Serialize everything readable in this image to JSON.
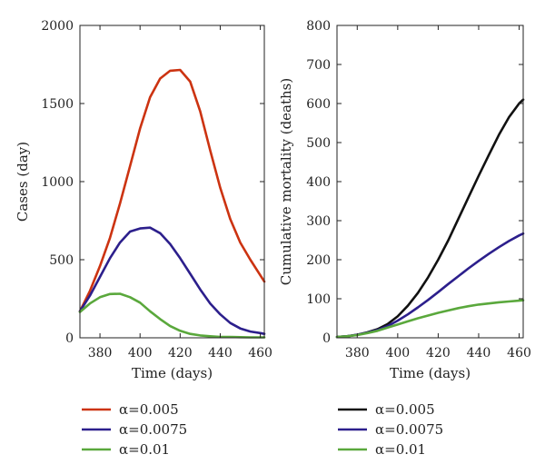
{
  "chart_data": [
    {
      "type": "line",
      "xlabel": "Time (days)",
      "ylabel": "Cases (day)",
      "xlim": [
        370,
        462
      ],
      "ylim": [
        0,
        2000
      ],
      "xticks": [
        380,
        400,
        420,
        440,
        460
      ],
      "yticks": [
        0,
        500,
        1000,
        1500,
        2000
      ],
      "x": [
        370,
        375,
        380,
        385,
        390,
        395,
        400,
        405,
        410,
        415,
        420,
        425,
        430,
        435,
        440,
        445,
        450,
        455,
        460,
        462
      ],
      "series": [
        {
          "name": "α=0.005",
          "color": "#cc3311",
          "values": [
            170,
            300,
            460,
            640,
            860,
            1100,
            1340,
            1540,
            1660,
            1710,
            1715,
            1640,
            1450,
            1200,
            960,
            760,
            610,
            500,
            400,
            360
          ]
        },
        {
          "name": "α=0.0075",
          "color": "#2c1f8c",
          "values": [
            170,
            270,
            390,
            510,
            610,
            680,
            700,
            705,
            670,
            600,
            510,
            410,
            310,
            220,
            150,
            95,
            60,
            40,
            30,
            25
          ]
        },
        {
          "name": "α=0.01",
          "color": "#5aa83c",
          "values": [
            165,
            220,
            260,
            280,
            282,
            260,
            225,
            170,
            120,
            75,
            45,
            25,
            15,
            10,
            6,
            5,
            4,
            3,
            3,
            3
          ]
        }
      ]
    },
    {
      "type": "line",
      "xlabel": "Time (days)",
      "ylabel": "Cumulative mortality (deaths)",
      "xlim": [
        370,
        462
      ],
      "ylim": [
        0,
        800
      ],
      "xticks": [
        380,
        400,
        420,
        440,
        460
      ],
      "yticks": [
        0,
        100,
        200,
        300,
        400,
        500,
        600,
        700,
        800
      ],
      "x": [
        370,
        375,
        380,
        385,
        390,
        395,
        400,
        405,
        410,
        415,
        420,
        425,
        430,
        435,
        440,
        445,
        450,
        455,
        460,
        462
      ],
      "series": [
        {
          "name": "α=0.005",
          "color": "#111111",
          "values": [
            2,
            4,
            8,
            14,
            22,
            35,
            55,
            82,
            115,
            155,
            200,
            250,
            305,
            360,
            415,
            468,
            520,
            565,
            600,
            610
          ]
        },
        {
          "name": "α=0.0075",
          "color": "#2c1f8c",
          "values": [
            2,
            4,
            8,
            13,
            20,
            30,
            44,
            60,
            78,
            97,
            117,
            138,
            158,
            178,
            197,
            215,
            232,
            248,
            262,
            267
          ]
        },
        {
          "name": "α=0.01",
          "color": "#5aa83c",
          "values": [
            2,
            4,
            7,
            12,
            18,
            26,
            34,
            42,
            50,
            57,
            64,
            70,
            76,
            81,
            85,
            88,
            91,
            93,
            95,
            96
          ]
        }
      ]
    }
  ]
}
